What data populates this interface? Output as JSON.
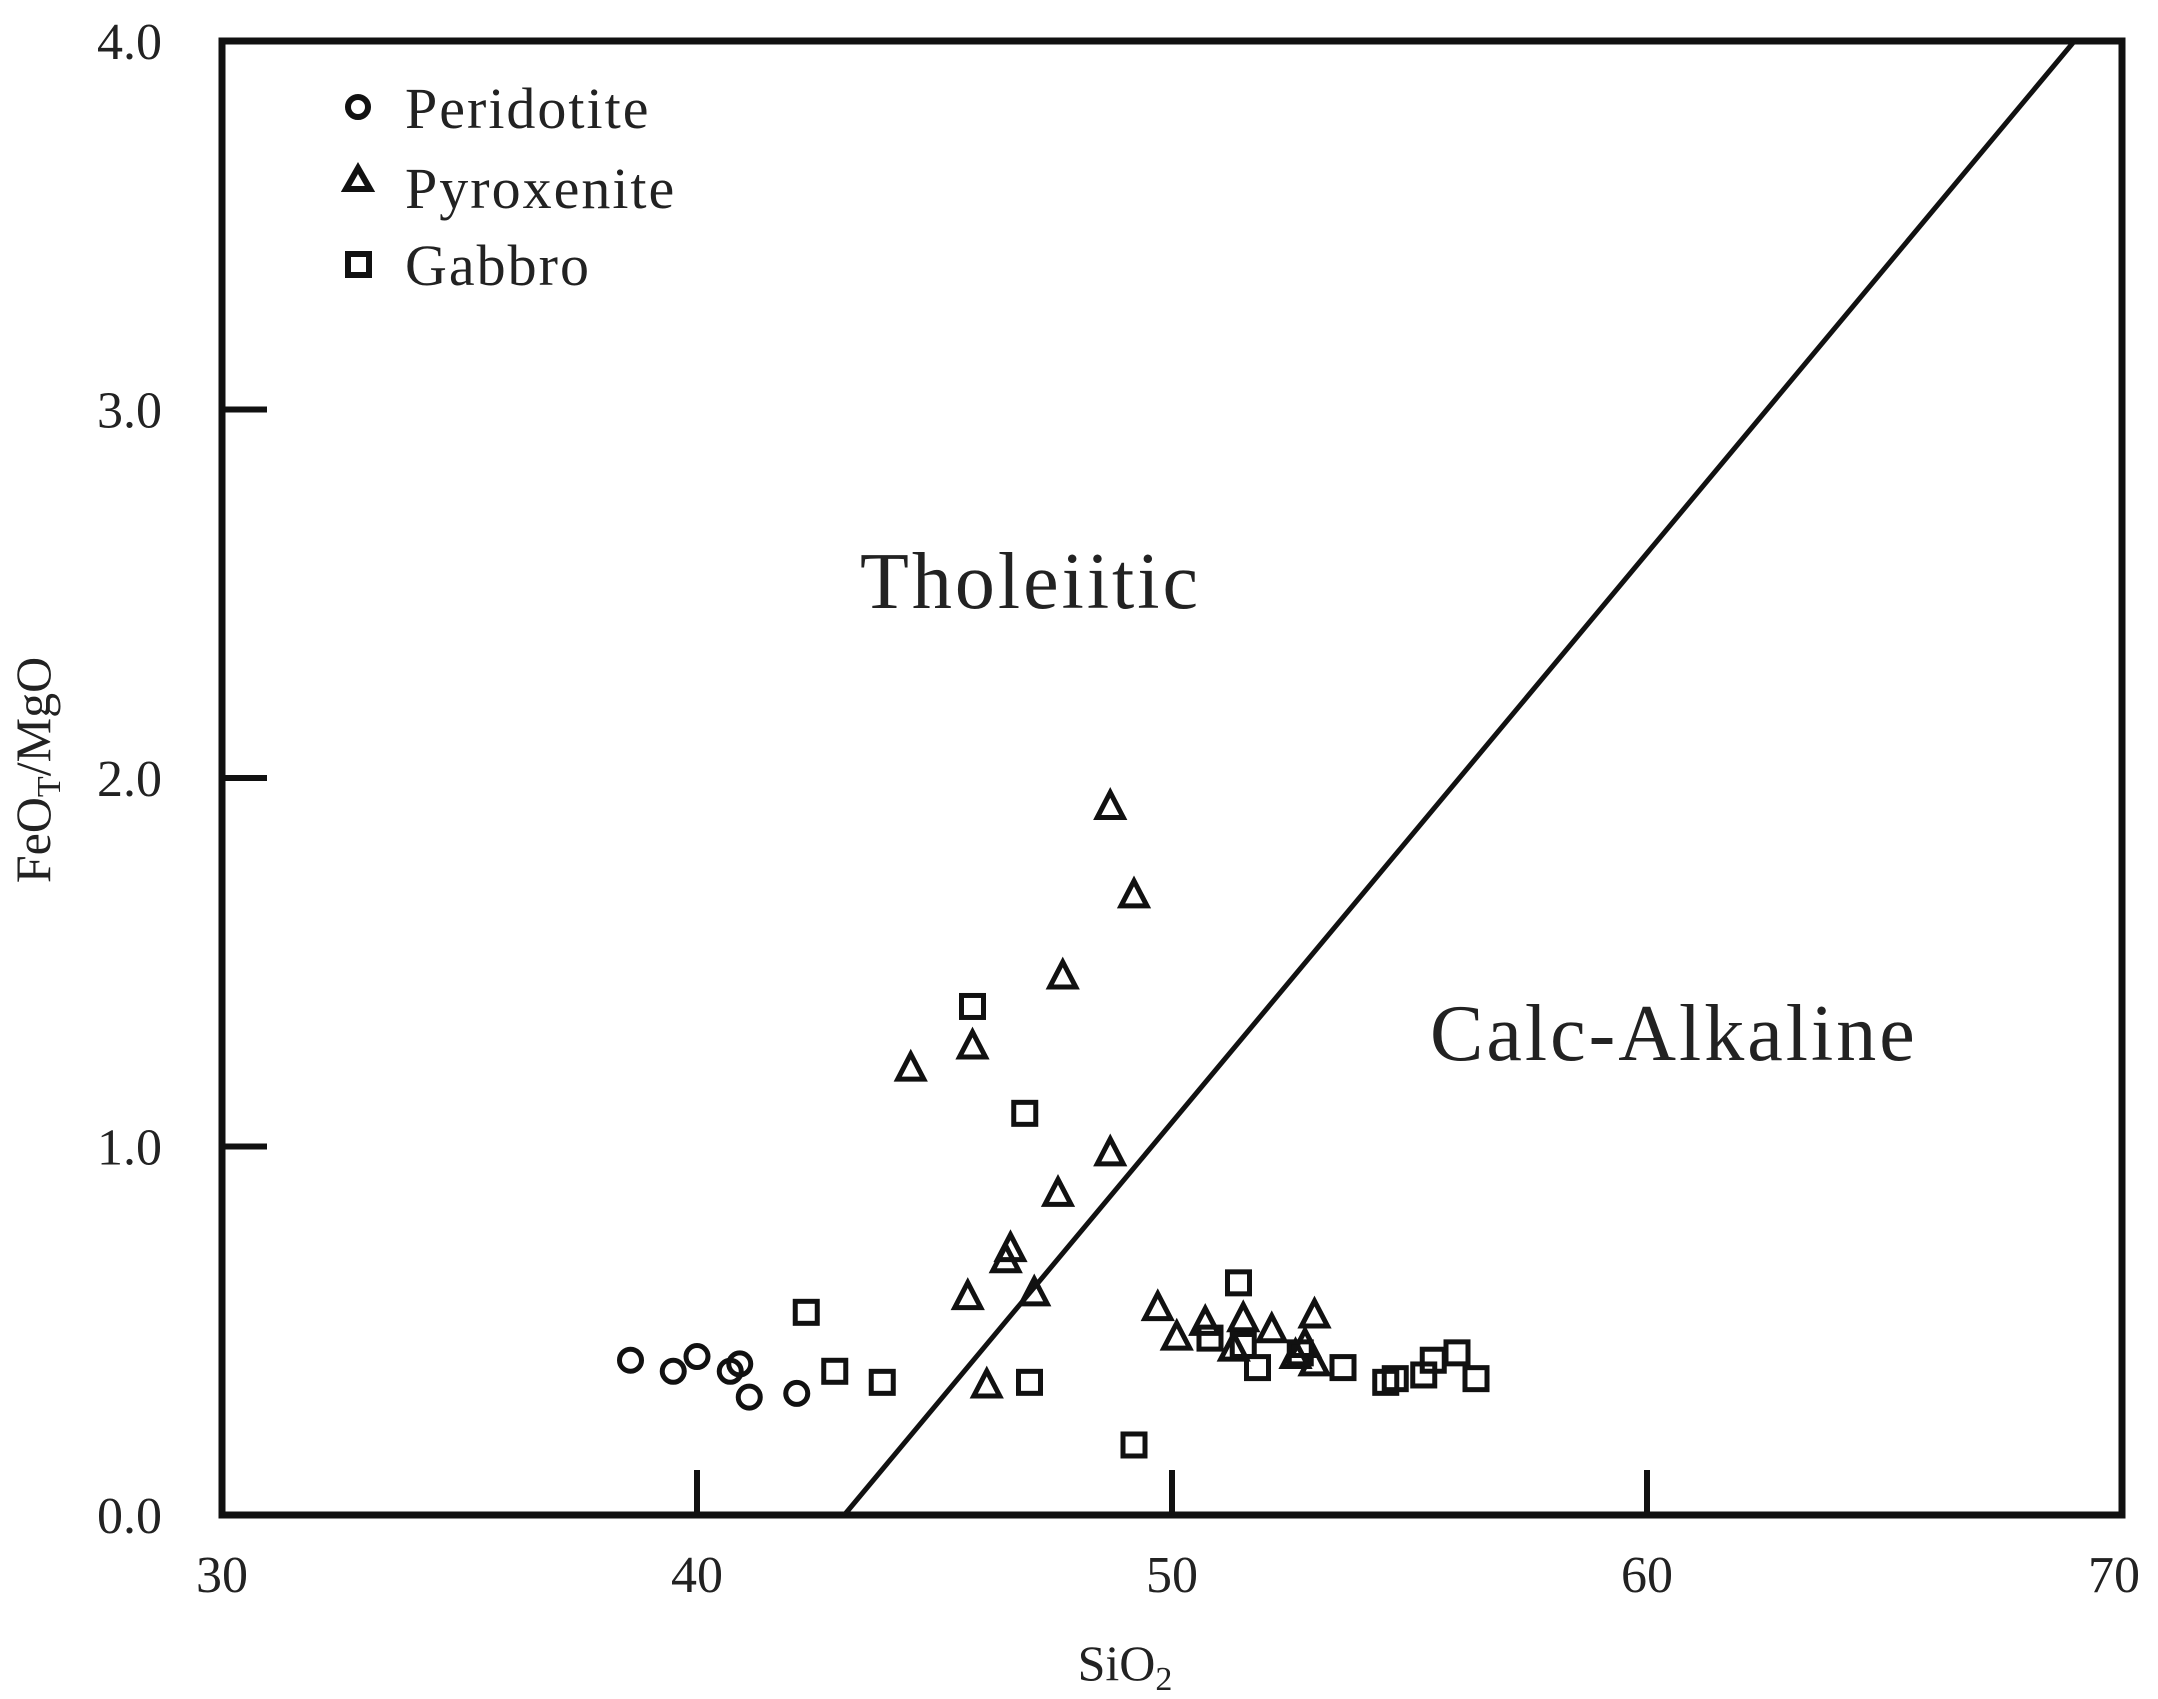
{
  "chart_data": {
    "type": "scatter",
    "title": "",
    "xlabel": "SiO",
    "xlabel_sub": "2",
    "ylabel": "FeO",
    "ylabel_sub": "T",
    "ylabel_rest": "/MgO",
    "xlim": [
      30,
      70
    ],
    "ylim": [
      0,
      4
    ],
    "x_ticks": [
      30,
      40,
      50,
      60,
      70
    ],
    "x_tick_labels": [
      "30",
      "40",
      "50",
      "60",
      "70"
    ],
    "y_ticks": [
      0,
      1,
      2,
      3,
      4
    ],
    "y_tick_labels": [
      "0.0",
      "1.0",
      "2.0",
      "3.0",
      "4.0"
    ],
    "grid": false,
    "legend_position": "top-left",
    "regions": [
      {
        "label": "Tholeiitic"
      },
      {
        "label": "Calc-Alkaline"
      }
    ],
    "divider_line": {
      "x1": 43.1,
      "y1": 0.0,
      "x2": 69.0,
      "y2": 4.0
    },
    "series": [
      {
        "name": "Peridotite",
        "marker": "circle",
        "points": [
          [
            38.6,
            0.42
          ],
          [
            39.5,
            0.39
          ],
          [
            40.0,
            0.43
          ],
          [
            40.7,
            0.39
          ],
          [
            40.9,
            0.41
          ],
          [
            41.1,
            0.32
          ],
          [
            42.1,
            0.33
          ]
        ]
      },
      {
        "name": "Pyroxenite",
        "marker": "triangle",
        "points": [
          [
            48.7,
            1.92
          ],
          [
            49.2,
            1.68
          ],
          [
            47.7,
            1.46
          ],
          [
            45.8,
            1.27
          ],
          [
            44.5,
            1.21
          ],
          [
            48.7,
            0.98
          ],
          [
            47.6,
            0.87
          ],
          [
            46.6,
            0.72
          ],
          [
            46.5,
            0.69
          ],
          [
            47.1,
            0.6
          ],
          [
            45.7,
            0.59
          ],
          [
            46.1,
            0.35
          ],
          [
            49.7,
            0.56
          ],
          [
            50.1,
            0.48
          ],
          [
            50.7,
            0.52
          ],
          [
            51.5,
            0.53
          ],
          [
            51.3,
            0.45
          ],
          [
            52.1,
            0.5
          ],
          [
            52.6,
            0.43
          ],
          [
            52.8,
            0.46
          ],
          [
            53.0,
            0.54
          ],
          [
            53.0,
            0.41
          ]
        ]
      },
      {
        "name": "Gabbro",
        "marker": "square",
        "points": [
          [
            45.8,
            1.38
          ],
          [
            46.9,
            1.09
          ],
          [
            42.3,
            0.55
          ],
          [
            42.9,
            0.39
          ],
          [
            43.9,
            0.36
          ],
          [
            47.0,
            0.36
          ],
          [
            49.2,
            0.19
          ],
          [
            51.4,
            0.63
          ],
          [
            50.8,
            0.48
          ],
          [
            51.5,
            0.46
          ],
          [
            51.8,
            0.4
          ],
          [
            52.7,
            0.44
          ],
          [
            53.6,
            0.4
          ],
          [
            54.5,
            0.36
          ],
          [
            54.7,
            0.37
          ],
          [
            55.3,
            0.38
          ],
          [
            55.5,
            0.42
          ],
          [
            56.0,
            0.44
          ],
          [
            56.4,
            0.37
          ]
        ]
      }
    ]
  }
}
